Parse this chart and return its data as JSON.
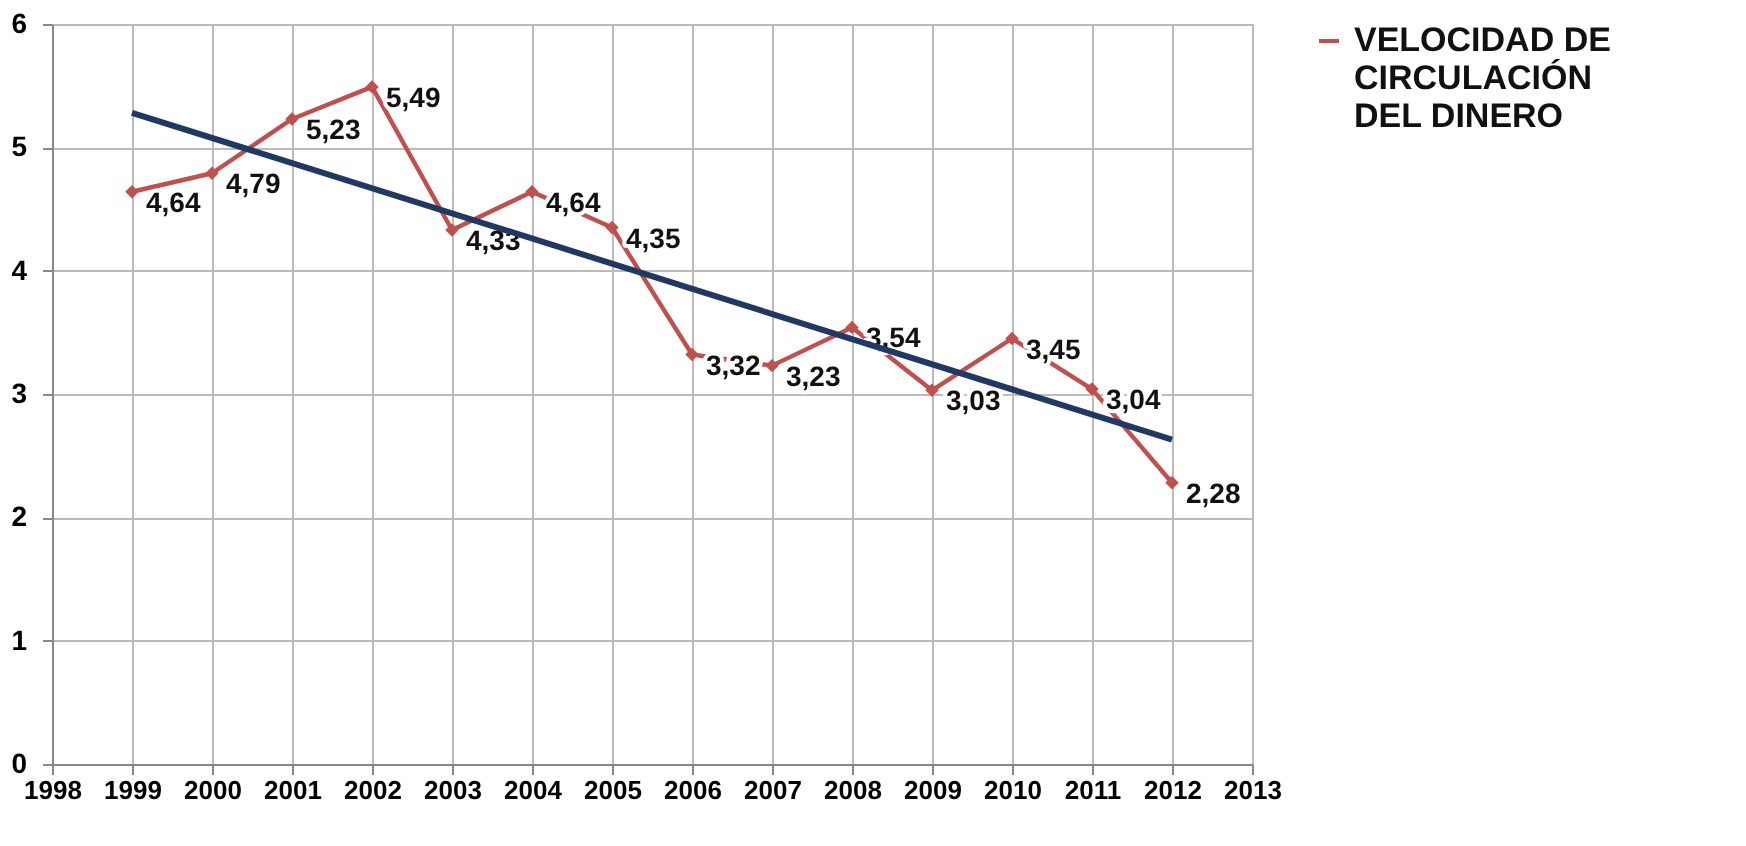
{
  "chart_data": {
    "type": "line",
    "x": [
      1999,
      2000,
      2001,
      2002,
      2003,
      2004,
      2005,
      2006,
      2007,
      2008,
      2009,
      2010,
      2011,
      2012
    ],
    "series": [
      {
        "name": "VELOCIDAD DE CIRCULACIÓN DEL DINERO",
        "color": "#c0504d",
        "marker": "diamond",
        "values": [
          4.64,
          4.79,
          5.23,
          5.49,
          4.33,
          4.64,
          4.35,
          3.32,
          3.23,
          3.54,
          3.03,
          3.45,
          3.04,
          2.28
        ],
        "value_labels": [
          "4,64",
          "4,79",
          "5,23",
          "5,49",
          "4,33",
          "4,64",
          "4,35",
          "3,32",
          "3,23",
          "3,54",
          "3,03",
          "3,45",
          "3,04",
          "2,28"
        ]
      },
      {
        "type": "line",
        "color": "#1f3864",
        "marker": "none",
        "x": [
          1999,
          2012
        ],
        "values": [
          5.28,
          2.63
        ]
      }
    ],
    "xlim": [
      1998,
      2013
    ],
    "xticks": [
      1998,
      1999,
      2000,
      2001,
      2002,
      2003,
      2004,
      2005,
      2006,
      2007,
      2008,
      2009,
      2010,
      2011,
      2012,
      2013
    ],
    "ylim": [
      0,
      6
    ],
    "yticks": [
      0,
      1,
      2,
      3,
      4,
      5,
      6
    ],
    "grid": true,
    "legend": "right"
  }
}
